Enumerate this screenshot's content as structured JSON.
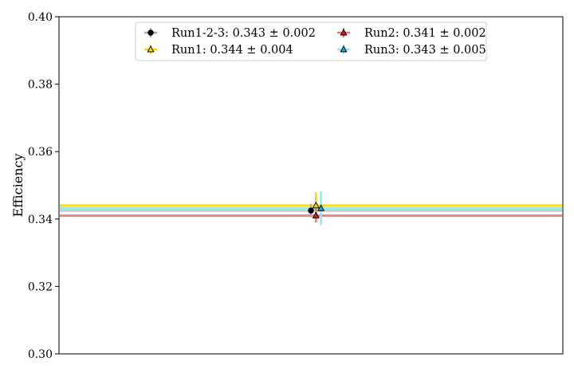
{
  "chart_data": {
    "type": "scatter",
    "title": "",
    "xlabel": "",
    "ylabel": "Efficiency",
    "xlim": [
      0,
      1
    ],
    "ylim": [
      0.3,
      0.4
    ],
    "yticks": [
      "0.30",
      "0.32",
      "0.34",
      "0.36",
      "0.38",
      "0.40"
    ],
    "grid": false,
    "legend_location": "top",
    "series": [
      {
        "name": "Run1-2-3: 0.343 ± 0.002",
        "value": 0.3425,
        "error": 0.002,
        "x": 0.5,
        "marker": "circle",
        "color": "#000000",
        "line_color": "#a8a8a8"
      },
      {
        "name": "Run1: 0.344 ± 0.004",
        "value": 0.344,
        "error": 0.004,
        "x": 0.51,
        "marker": "triangle",
        "color": "#f5d800",
        "line_color": "#f5d800"
      },
      {
        "name": "Run2: 0.341 ± 0.002",
        "value": 0.341,
        "error": 0.002,
        "x": 0.51,
        "marker": "triangle",
        "color": "#cc1f1f",
        "line_color": "#e87878"
      },
      {
        "name": "Run3: 0.343 ± 0.005",
        "value": 0.3432,
        "error": 0.005,
        "x": 0.52,
        "marker": "triangle",
        "color": "#2a9fd6",
        "line_color": "#8fe8f5"
      }
    ]
  }
}
